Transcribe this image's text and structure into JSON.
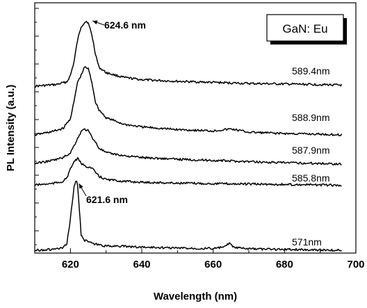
{
  "chart_data": {
    "type": "line",
    "title": "",
    "xlabel": "Wavelength (nm)",
    "ylabel": "PL  Intensity (a.u.)",
    "xlim": [
      610,
      700
    ],
    "xticks": [
      620,
      640,
      660,
      680,
      700
    ],
    "y_tick_labels_shown": false,
    "legend_box": "GaN: Eu",
    "legend_placement": "top-right",
    "grid": false,
    "series": [
      {
        "name": "589.4nm",
        "x": [
          610,
          616,
          619,
          620,
          621,
          622,
          623,
          624,
          624.6,
          625,
          626,
          627,
          628,
          630,
          635,
          640,
          650,
          660,
          670,
          680,
          690,
          696
        ],
        "y": [
          0.0,
          0.3,
          0.8,
          2.0,
          4.5,
          8.5,
          11.0,
          11.8,
          12.0,
          11.6,
          9.5,
          6.0,
          3.5,
          2.5,
          1.6,
          1.2,
          0.9,
          0.7,
          0.5,
          0.4,
          0.3,
          0.2
        ]
      },
      {
        "name": "588.9nm",
        "x": [
          610,
          615,
          618,
          620,
          621,
          622,
          623,
          624,
          625,
          626,
          627,
          628,
          630,
          635,
          640,
          650,
          660,
          665,
          670,
          680,
          690,
          696
        ],
        "y": [
          0.0,
          0.5,
          1.0,
          2.5,
          5.0,
          8.0,
          9.0,
          10.3,
          10.0,
          8.0,
          5.0,
          3.8,
          2.6,
          1.6,
          1.2,
          0.8,
          0.6,
          0.9,
          0.4,
          0.2,
          0.1,
          0.0
        ]
      },
      {
        "name": "587.9nm",
        "x": [
          610,
          615,
          618,
          620,
          621,
          622,
          623,
          624,
          625,
          626,
          627,
          628,
          630,
          635,
          640,
          650,
          660,
          670,
          680,
          690,
          696
        ],
        "y": [
          0.0,
          0.5,
          1.0,
          1.8,
          3.0,
          4.2,
          5.4,
          5.8,
          5.5,
          4.5,
          3.6,
          2.6,
          1.8,
          1.3,
          1.0,
          0.7,
          0.5,
          0.3,
          0.1,
          0.0,
          -0.1
        ]
      },
      {
        "name": "585.8nm",
        "x": [
          610,
          615,
          618,
          619,
          620,
          621,
          622,
          623,
          624,
          625,
          626,
          627,
          628,
          630,
          635,
          640,
          650,
          660,
          670,
          680,
          690,
          696
        ],
        "y": [
          0.0,
          0.3,
          0.8,
          1.6,
          3.5,
          5.2,
          5.8,
          4.8,
          4.2,
          4.0,
          3.7,
          2.8,
          1.9,
          1.2,
          0.8,
          0.6,
          0.4,
          0.3,
          0.2,
          0.1,
          0.0,
          -0.1
        ]
      },
      {
        "name": "571nm",
        "x": [
          610,
          615,
          618,
          619,
          620,
          621,
          621.6,
          622,
          622.5,
          623,
          624,
          625,
          626,
          628,
          630,
          633,
          636,
          640,
          645,
          650,
          655,
          660,
          663,
          664.5,
          666,
          670,
          680,
          690,
          696
        ],
        "y": [
          0.0,
          0.2,
          0.5,
          1.5,
          7.0,
          14.0,
          15.5,
          14.5,
          9.0,
          3.5,
          2.2,
          2.0,
          1.5,
          1.2,
          0.9,
          1.0,
          0.8,
          0.7,
          0.6,
          0.5,
          0.45,
          0.4,
          0.7,
          1.5,
          0.6,
          0.3,
          0.2,
          0.1,
          0.0
        ]
      }
    ],
    "annotations": [
      {
        "text": "624.6 nm",
        "x": 624.6
      },
      {
        "text": "621.6 nm",
        "x": 621.6
      }
    ]
  }
}
